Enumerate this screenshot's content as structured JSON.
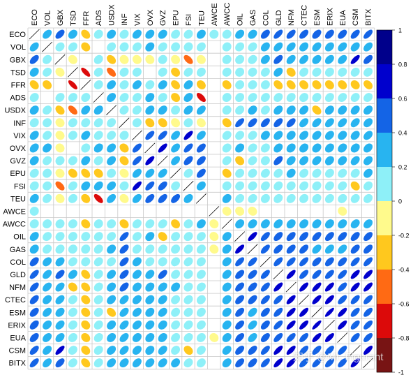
{
  "chart_data": {
    "type": "heatmap",
    "style": "correlation-ellipse-matrix",
    "variables": [
      "ECO",
      "VOL",
      "GBX",
      "TSD",
      "FFR",
      "ADS",
      "USDX",
      "INF",
      "VIX",
      "OVX",
      "GVZ",
      "EPU",
      "FSI",
      "TEU",
      "AWCE",
      "AWCC",
      "OIL",
      "GAS",
      "COL",
      "GLD",
      "NFM",
      "CTEC",
      "ESM",
      "ERIX",
      "EUA",
      "CSM",
      "BITX"
    ],
    "matrix": [
      [
        1,
        0.4,
        0.5,
        0.25,
        -0.3,
        0.15,
        0.25,
        0.15,
        0.3,
        0.3,
        0.25,
        0.2,
        0.15,
        0.25,
        0.05,
        0.1,
        0.3,
        0.25,
        0.45,
        0.6,
        0.55,
        0.5,
        0.45,
        0.45,
        0.45,
        0.55,
        0.6
      ],
      [
        0.4,
        1,
        0.2,
        0.2,
        -0.2,
        0,
        0.2,
        0.1,
        0.2,
        0.25,
        0.2,
        0.1,
        0.1,
        0.2,
        0,
        0.1,
        0.2,
        0.2,
        0.3,
        0.4,
        0.4,
        0.3,
        0.35,
        0.3,
        0.35,
        0.35,
        0.4
      ],
      [
        0.5,
        0.2,
        1,
        -0.15,
        0,
        0.2,
        -0.3,
        -0.1,
        -0.1,
        -0.1,
        0.1,
        -0.1,
        -0.5,
        -0.1,
        0,
        0.1,
        0.15,
        0.2,
        0.3,
        0.5,
        0.4,
        0.4,
        0.3,
        0.35,
        0.35,
        0.7,
        0.5
      ],
      [
        0.25,
        0.2,
        -0.15,
        1,
        -0.7,
        0.15,
        -0.5,
        0.15,
        0.1,
        0,
        0.15,
        -0.2,
        0.2,
        0.15,
        0,
        0.1,
        0.1,
        0.1,
        0.2,
        0.3,
        -0.2,
        0.2,
        0.15,
        0.15,
        0.15,
        0.2,
        0.2
      ],
      [
        -0.3,
        -0.2,
        0,
        -0.7,
        1,
        0.15,
        0.3,
        0.15,
        0.3,
        0.15,
        0.25,
        -0.3,
        0.25,
        -0.2,
        0,
        -0.2,
        0.1,
        0.1,
        0.1,
        -0.3,
        -0.3,
        -0.2,
        -0.2,
        -0.2,
        -0.2,
        -0.2,
        -0.3
      ],
      [
        0.15,
        0,
        0.2,
        0.15,
        0.15,
        1,
        0.3,
        0.2,
        0.2,
        0.25,
        0.15,
        -0.2,
        0.3,
        -0.6,
        0,
        0.1,
        0.15,
        0.2,
        0.2,
        0.2,
        0.2,
        0.15,
        0.15,
        0.2,
        0.2,
        0.2,
        0.2
      ],
      [
        0.25,
        0.2,
        -0.3,
        -0.5,
        0.3,
        0.3,
        1,
        0.2,
        0.2,
        0.3,
        0.3,
        0.1,
        0.3,
        0.4,
        0,
        0.1,
        0.2,
        0.25,
        0.2,
        0.3,
        0.25,
        0.3,
        -0.3,
        0.25,
        0.25,
        0.3,
        0.3
      ],
      [
        0.15,
        0.1,
        -0.1,
        0.15,
        0.15,
        0.2,
        0.2,
        1,
        0.1,
        -0.2,
        -0.2,
        -0.15,
        0.1,
        -0.15,
        0,
        -0.2,
        0.6,
        0.5,
        0.5,
        0.5,
        0.5,
        0.4,
        0.4,
        0.4,
        0.4,
        0.4,
        0.3
      ],
      [
        0.3,
        0.2,
        -0.1,
        0.1,
        0.3,
        0.2,
        0.2,
        0.1,
        1,
        0.6,
        0.6,
        0.4,
        0.7,
        0.4,
        0,
        0.2,
        0.2,
        0.2,
        0.25,
        0.3,
        0.25,
        0.3,
        0.3,
        0.3,
        0.25,
        0.3,
        0.35
      ],
      [
        0.3,
        0.25,
        -0.1,
        0,
        0.15,
        0.25,
        0.3,
        -0.2,
        0.6,
        1,
        0.7,
        0.4,
        0.6,
        0.5,
        0,
        0.2,
        0.25,
        0.2,
        0.2,
        0.3,
        0.25,
        0.25,
        0.25,
        0.25,
        0.25,
        0.25,
        0.3
      ],
      [
        0.25,
        0.2,
        0.1,
        0.15,
        0.25,
        0.15,
        0.3,
        -0.2,
        0.6,
        0.7,
        1,
        0.4,
        0.5,
        0.5,
        0,
        0.2,
        -0.2,
        0.2,
        0.1,
        0.5,
        0.3,
        0.3,
        0.3,
        0.25,
        0.25,
        0.35,
        0.3
      ],
      [
        0.2,
        0.1,
        -0.1,
        -0.2,
        -0.3,
        -0.2,
        0.1,
        -0.15,
        0.4,
        0.4,
        0.4,
        1,
        0.2,
        0.5,
        0,
        -0.2,
        0.15,
        0.15,
        0.2,
        0.2,
        0.25,
        0.2,
        0.2,
        0.2,
        0.2,
        0.2,
        0.25
      ],
      [
        0.15,
        0.1,
        -0.5,
        0.2,
        0.25,
        0.3,
        0.3,
        0.1,
        0.7,
        0.6,
        0.5,
        0.2,
        1,
        0.3,
        0,
        0.1,
        0.15,
        0.15,
        0.2,
        0.2,
        0.15,
        0.2,
        0.15,
        0.2,
        0.2,
        -0.25,
        0.2
      ],
      [
        0.25,
        0.2,
        -0.1,
        0.15,
        -0.2,
        -0.6,
        0.4,
        -0.15,
        0.4,
        0.5,
        0.5,
        0.5,
        0.3,
        1,
        0,
        0.25,
        0.2,
        0.2,
        0.15,
        0.2,
        0.2,
        0.15,
        0.2,
        0.2,
        0.15,
        0.2,
        0.2
      ],
      [
        0.05,
        0,
        0,
        0,
        0,
        0,
        0,
        0,
        0,
        0,
        0,
        0,
        0,
        0,
        1,
        -0.1,
        -0.1,
        -0.1,
        0,
        0,
        0,
        0,
        0,
        0,
        -0.1,
        0,
        0
      ],
      [
        0.1,
        0.1,
        0.1,
        0.1,
        -0.2,
        0.1,
        0.1,
        -0.2,
        0.2,
        0.2,
        0.2,
        -0.2,
        0.1,
        0.25,
        -0.1,
        1,
        0.25,
        0.25,
        0.25,
        0.3,
        0.25,
        0.25,
        0.25,
        0.25,
        0.25,
        0.3,
        0.3
      ],
      [
        0.3,
        0.2,
        0.15,
        0.1,
        0.1,
        0.15,
        0.2,
        0.6,
        0.2,
        0.25,
        -0.2,
        0.15,
        0.15,
        0.2,
        -0.1,
        0.25,
        1,
        0.7,
        0.6,
        0.5,
        0.5,
        0.5,
        0.5,
        0.5,
        0.5,
        0.5,
        0.5
      ],
      [
        0.25,
        0.2,
        0.2,
        0.1,
        0.1,
        0.2,
        0.25,
        0.5,
        0.2,
        0.2,
        0.2,
        0.15,
        0.15,
        0.2,
        -0.1,
        0.25,
        0.7,
        1,
        0.6,
        0.5,
        0.5,
        0.5,
        0.4,
        0.4,
        0.4,
        0.5,
        0.5
      ],
      [
        0.45,
        0.3,
        0.3,
        0.2,
        0.1,
        0.2,
        0.2,
        0.5,
        0.25,
        0.2,
        0.1,
        0.2,
        0.2,
        0.15,
        0,
        0.25,
        0.6,
        0.6,
        1,
        0.6,
        0.6,
        0.6,
        0.5,
        0.5,
        0.5,
        0.6,
        0.6
      ],
      [
        0.6,
        0.4,
        0.5,
        0.3,
        -0.3,
        0.2,
        0.3,
        0.5,
        0.3,
        0.3,
        0.5,
        0.2,
        0.2,
        0.2,
        0,
        0.3,
        0.5,
        0.5,
        0.6,
        1,
        0.7,
        0.6,
        0.6,
        0.6,
        0.6,
        0.7,
        0.7
      ],
      [
        0.55,
        0.4,
        0.4,
        -0.2,
        -0.3,
        0.2,
        0.25,
        0.5,
        0.25,
        0.25,
        0.3,
        0.25,
        0.15,
        0.2,
        0,
        0.25,
        0.5,
        0.5,
        0.6,
        0.7,
        1,
        0.7,
        0.7,
        0.7,
        0.6,
        0.7,
        0.7
      ],
      [
        0.5,
        0.3,
        0.4,
        0.2,
        -0.2,
        0.15,
        0.3,
        0.4,
        0.3,
        0.25,
        0.3,
        0.2,
        0.2,
        0.15,
        0,
        0.25,
        0.5,
        0.5,
        0.6,
        0.6,
        0.7,
        1,
        0.7,
        0.7,
        0.6,
        0.6,
        0.6
      ],
      [
        0.45,
        0.35,
        0.3,
        0.15,
        -0.2,
        0.15,
        -0.3,
        0.4,
        0.3,
        0.25,
        0.3,
        0.2,
        0.15,
        0.2,
        0,
        0.25,
        0.5,
        0.4,
        0.5,
        0.6,
        0.7,
        0.7,
        1,
        0.8,
        0.7,
        0.6,
        0.6
      ],
      [
        0.45,
        0.3,
        0.35,
        0.15,
        -0.2,
        0.2,
        0.25,
        0.4,
        0.3,
        0.25,
        0.25,
        0.2,
        0.2,
        0.2,
        0,
        0.25,
        0.5,
        0.4,
        0.5,
        0.6,
        0.7,
        0.7,
        0.8,
        1,
        0.7,
        0.6,
        0.6
      ],
      [
        0.45,
        0.35,
        0.35,
        0.15,
        -0.2,
        0.2,
        0.25,
        0.4,
        0.25,
        0.25,
        0.25,
        0.2,
        0.2,
        0.15,
        -0.1,
        0.25,
        0.5,
        0.4,
        0.5,
        0.6,
        0.6,
        0.6,
        0.7,
        0.7,
        1,
        0.6,
        0.6
      ],
      [
        0.55,
        0.35,
        0.7,
        0.2,
        -0.2,
        0.2,
        0.3,
        0.4,
        0.3,
        0.25,
        0.35,
        0.2,
        -0.25,
        0.2,
        0,
        0.3,
        0.5,
        0.5,
        0.6,
        0.7,
        0.7,
        0.6,
        0.6,
        0.6,
        0.6,
        1,
        0.7
      ],
      [
        0.6,
        0.4,
        0.5,
        0.2,
        -0.3,
        0.2,
        0.3,
        0.3,
        0.35,
        0.3,
        0.3,
        0.25,
        0.2,
        0.2,
        0,
        0.3,
        0.5,
        0.5,
        0.6,
        0.7,
        0.7,
        0.6,
        0.6,
        0.6,
        0.6,
        0.7,
        1
      ]
    ],
    "colorbar": {
      "ticks": [
        "1",
        "0.8",
        "0.6",
        "0.4",
        "0.2",
        "0",
        "-0.2",
        "-0.4",
        "-0.6",
        "-0.8",
        "-1"
      ],
      "bins": [
        {
          "from": 0.8,
          "to": 1.0,
          "color": "#00008b"
        },
        {
          "from": 0.6,
          "to": 0.8,
          "color": "#0000cd"
        },
        {
          "from": 0.4,
          "to": 0.6,
          "color": "#1464e6"
        },
        {
          "from": 0.2,
          "to": 0.4,
          "color": "#28b4f0"
        },
        {
          "from": 0.0,
          "to": 0.2,
          "color": "#8ef0f8"
        },
        {
          "from": -0.2,
          "to": 0.0,
          "color": "#fffa8c"
        },
        {
          "from": -0.4,
          "to": -0.2,
          "color": "#ffc81e"
        },
        {
          "from": -0.6,
          "to": -0.4,
          "color": "#ff6a14"
        },
        {
          "from": -0.8,
          "to": -0.6,
          "color": "#dc0a0a"
        },
        {
          "from": -1.0,
          "to": -0.8,
          "color": "#781414"
        }
      ]
    },
    "diagonal": "line",
    "blank_threshold": 0.05,
    "grid": true,
    "legend_position": "right"
  },
  "watermark": "知乎 @Mr. Figurant"
}
